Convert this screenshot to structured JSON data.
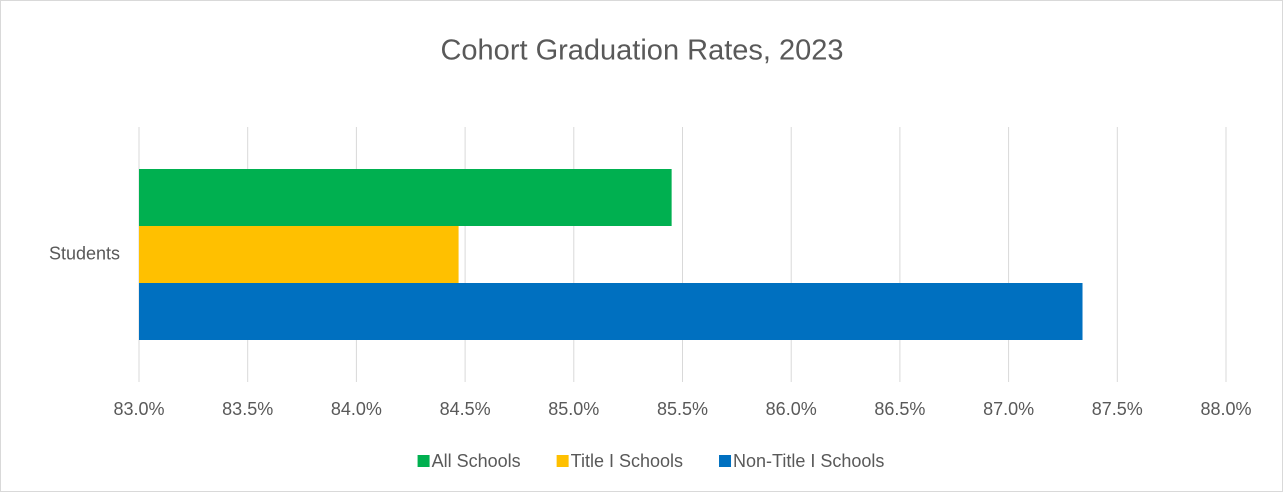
{
  "chart_data": {
    "type": "bar",
    "orientation": "horizontal",
    "title": "Cohort Graduation Rates, 2023",
    "categories": [
      "Students"
    ],
    "series": [
      {
        "name": "All Schools",
        "color": "#00b050",
        "values": [
          85.45
        ]
      },
      {
        "name": "Title I Schools",
        "color": "#ffc000",
        "values": [
          84.47
        ]
      },
      {
        "name": "Non-Title I Schools",
        "color": "#0070c0",
        "values": [
          87.34
        ]
      }
    ],
    "xlim": [
      83,
      88
    ],
    "xticks": [
      {
        "value": 83,
        "label": "83.0%"
      },
      {
        "value": 83.5,
        "label": "83.5%"
      },
      {
        "value": 84,
        "label": "84.0%"
      },
      {
        "value": 84.5,
        "label": "84.5%"
      },
      {
        "value": 85,
        "label": "85.0%"
      },
      {
        "value": 85.5,
        "label": "85.5%"
      },
      {
        "value": 86,
        "label": "86.0%"
      },
      {
        "value": 86.5,
        "label": "86.5%"
      },
      {
        "value": 87,
        "label": "87.0%"
      },
      {
        "value": 87.5,
        "label": "87.5%"
      },
      {
        "value": 88,
        "label": "88.0%"
      }
    ],
    "grid": true,
    "legend": "bottom"
  }
}
